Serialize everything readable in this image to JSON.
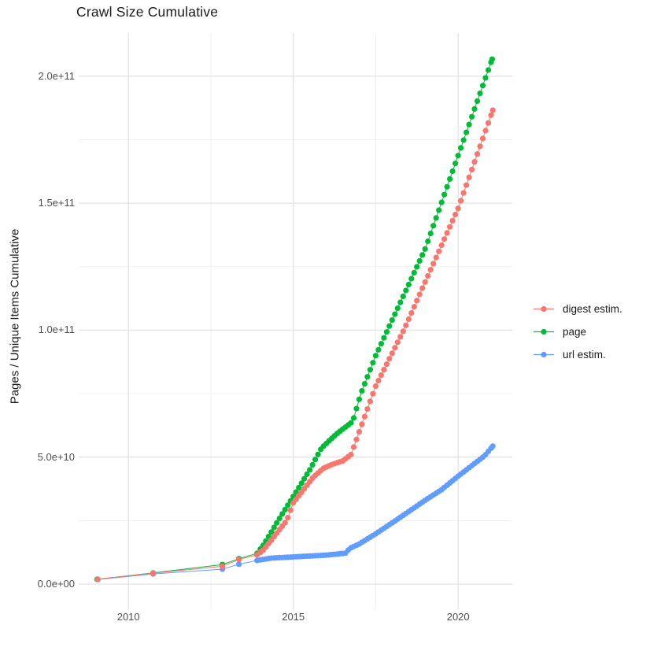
{
  "title": "Crawl Size Cumulative",
  "axes": {
    "y_title": "Pages / Unique Items Cumulative",
    "y_ticks": [
      {
        "label": "0.0e+00",
        "value": 0
      },
      {
        "label": "5.0e+10",
        "value": 50000000000.0
      },
      {
        "label": "1.0e+11",
        "value": 100000000000.0
      },
      {
        "label": "1.5e+11",
        "value": 150000000000.0
      },
      {
        "label": "2.0e+11",
        "value": 200000000000.0
      }
    ],
    "x_ticks": [
      {
        "label": "2010",
        "year": 2010
      },
      {
        "label": "2015",
        "year": 2015
      },
      {
        "label": "2020",
        "year": 2020
      }
    ]
  },
  "legend": {
    "position": "right",
    "entries": [
      {
        "label": "digest estim.",
        "color": "#F8766D"
      },
      {
        "label": "page",
        "color": "#00BA38"
      },
      {
        "label": "url estim.",
        "color": "#619CFF"
      }
    ]
  },
  "colors": {
    "grid_major": "#e3e3e3",
    "grid_minor": "#f0f0f0",
    "tick_text": "#4d4d4d",
    "title_text": "#1a1a1a"
  },
  "chart_data": {
    "type": "scatter",
    "title": "Crawl Size Cumulative",
    "xlabel": "",
    "ylabel": "Pages / Unique Items Cumulative",
    "xlim": [
      2008.5,
      2021.6
    ],
    "ylim": [
      0,
      215000000000.0
    ],
    "grid": true,
    "x_minor_gridlines": [
      2012.5,
      2017.5
    ],
    "y_minor_gridlines": [
      25000000000.0,
      75000000000.0,
      125000000000.0,
      175000000000.0
    ],
    "legend_position": "right",
    "point_style": "dot-with-line",
    "dense_from_year": 2014.0,
    "dense_interval_years": 0.0833,
    "series": [
      {
        "name": "digest estim.",
        "color": "#F8766D",
        "points": [
          [
            2009.07,
            1900000000.0
          ],
          [
            2010.75,
            4300000000.0
          ],
          [
            2012.85,
            7000000000.0
          ],
          [
            2013.35,
            9700000000.0
          ],
          [
            2013.9,
            11500000000.0
          ],
          [
            2014.1,
            13500000000.0
          ],
          [
            2014.8,
            25000000000.0
          ],
          [
            2015.0,
            32000000000.0
          ],
          [
            2015.3,
            37000000000.0
          ],
          [
            2015.6,
            42000000000.0
          ],
          [
            2015.9,
            45500000000.0
          ],
          [
            2016.15,
            47000000000.0
          ],
          [
            2016.5,
            48500000000.0
          ],
          [
            2016.75,
            51000000000.0
          ],
          [
            2017.0,
            60000000000.0
          ],
          [
            2017.5,
            78000000000.0
          ],
          [
            2018.35,
            100000000000.0
          ],
          [
            2019.0,
            119000000000.0
          ],
          [
            2020.0,
            148000000000.0
          ],
          [
            2021.05,
            186600000000.0
          ]
        ]
      },
      {
        "name": "page",
        "color": "#00BA38",
        "points": [
          [
            2009.05,
            1900000000.0
          ],
          [
            2010.75,
            4400000000.0
          ],
          [
            2012.85,
            7700000000.0
          ],
          [
            2013.35,
            10000000000.0
          ],
          [
            2013.9,
            12100000000.0
          ],
          [
            2014.1,
            15500000000.0
          ],
          [
            2014.54,
            25000000000.0
          ],
          [
            2015.0,
            34500000000.0
          ],
          [
            2015.5,
            45000000000.0
          ],
          [
            2015.85,
            53500000000.0
          ],
          [
            2016.3,
            59000000000.0
          ],
          [
            2016.8,
            64000000000.0
          ],
          [
            2017.05,
            75000000000.0
          ],
          [
            2017.5,
            90000000000.0
          ],
          [
            2019.0,
            132000000000.0
          ],
          [
            2021.03,
            206700000000.0
          ]
        ]
      },
      {
        "name": "url estim.",
        "color": "#619CFF",
        "points": [
          [
            2009.07,
            1800000000.0
          ],
          [
            2010.75,
            4000000000.0
          ],
          [
            2012.85,
            5900000000.0
          ],
          [
            2013.35,
            7800000000.0
          ],
          [
            2013.9,
            9300000000.0
          ],
          [
            2014.3,
            10200000000.0
          ],
          [
            2015.0,
            10700000000.0
          ],
          [
            2016.0,
            11400000000.0
          ],
          [
            2016.6,
            12200000000.0
          ],
          [
            2016.7,
            14000000000.0
          ],
          [
            2017.0,
            15800000000.0
          ],
          [
            2017.5,
            19800000000.0
          ],
          [
            2018.1,
            25000000000.0
          ],
          [
            2019.0,
            33000000000.0
          ],
          [
            2019.5,
            37200000000.0
          ],
          [
            2020.0,
            42500000000.0
          ],
          [
            2020.8,
            50500000000.0
          ],
          [
            2021.05,
            54300000000.0
          ]
        ]
      }
    ]
  }
}
